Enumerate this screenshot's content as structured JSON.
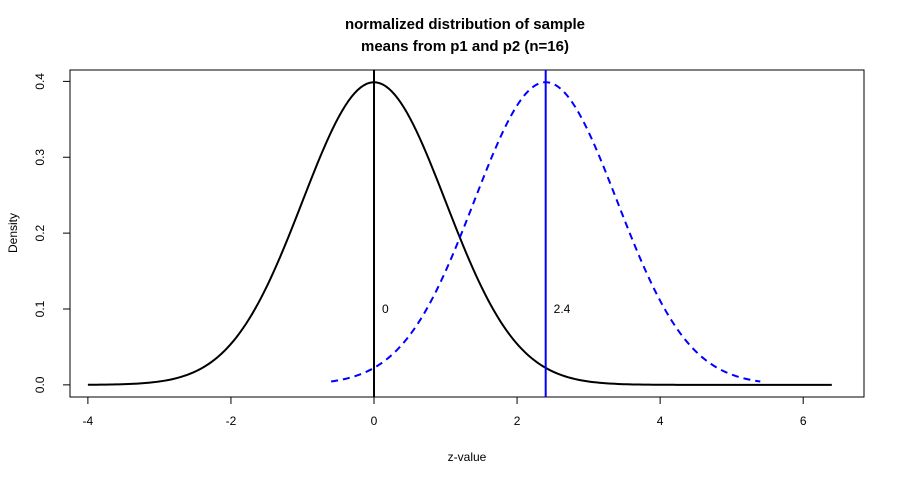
{
  "chart_data": {
    "type": "line",
    "title_lines": [
      "normalized distribution of sample",
      "means from p1 and p2 (n=16)"
    ],
    "xlabel": "z-value",
    "ylabel": "Density",
    "xlim": [
      -4.25,
      6.85
    ],
    "ylim": [
      -0.016,
      0.415
    ],
    "xticks": [
      -4,
      -2,
      0,
      2,
      4,
      6
    ],
    "xtick_labels": [
      "-4",
      "-2",
      "0",
      "2",
      "4",
      "6"
    ],
    "yticks": [
      0.0,
      0.1,
      0.2,
      0.3,
      0.4
    ],
    "ytick_labels": [
      "0.0",
      "0.1",
      "0.2",
      "0.3",
      "0.4"
    ],
    "series": [
      {
        "color": "#000000",
        "style": "solid",
        "x": [
          -4.0,
          -3.5,
          -3.0,
          -2.5,
          -2.0,
          -1.5,
          -1.0,
          -0.5,
          0.0,
          0.5,
          1.0,
          1.5,
          2.0,
          2.5,
          3.0,
          3.5,
          4.0,
          4.5,
          5.0,
          5.5,
          6.0,
          6.4
        ],
        "y": [
          0.0001,
          0.0009,
          0.0044,
          0.0175,
          0.054,
          0.1295,
          0.242,
          0.3521,
          0.3989,
          0.3521,
          0.242,
          0.1295,
          0.054,
          0.0175,
          0.0044,
          0.0009,
          0.0001,
          0.0,
          0.0,
          0.0,
          0.0,
          0.0
        ]
      },
      {
        "color": "#0000ff",
        "style": "dashed",
        "x": [
          -0.6,
          -0.1,
          0.4,
          0.9,
          1.4,
          1.9,
          2.4,
          2.9,
          3.4,
          3.9,
          4.4,
          4.9,
          5.4
        ],
        "y": [
          0.0044,
          0.0175,
          0.054,
          0.1295,
          0.242,
          0.3521,
          0.3989,
          0.3521,
          0.242,
          0.1295,
          0.054,
          0.0175,
          0.0044
        ]
      }
    ],
    "vlines": [
      {
        "x": 0,
        "color": "#000000",
        "label": "0",
        "label_y": 0.1
      },
      {
        "x": 2.4,
        "color": "#0000ff",
        "label": "2.4",
        "label_y": 0.1
      }
    ]
  }
}
